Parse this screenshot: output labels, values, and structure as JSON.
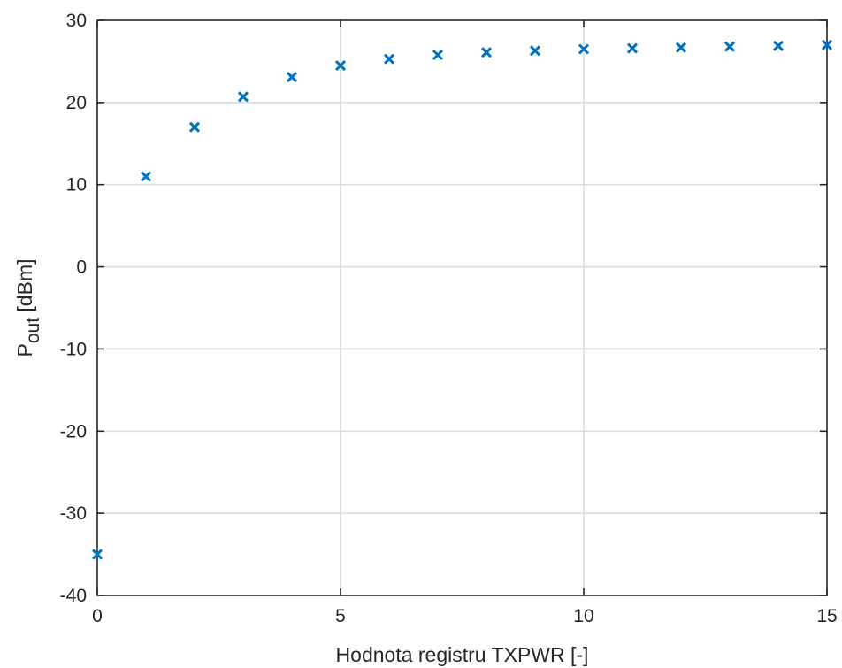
{
  "chart_data": {
    "type": "scatter",
    "marker": "x",
    "marker_color": "#0072bd",
    "xlabel": "Hodnota registru TXPWR [-]",
    "ylabel_main": "P",
    "ylabel_sub": "out",
    "ylabel_unit": " [dBm]",
    "xlim": [
      0,
      15
    ],
    "ylim": [
      -40,
      30
    ],
    "xticks": [
      0,
      5,
      10,
      15
    ],
    "yticks": [
      -40,
      -30,
      -20,
      -10,
      0,
      10,
      20,
      30
    ],
    "grid": true,
    "grid_color": "#dcdcdc",
    "axis_color": "#262626",
    "series": [
      {
        "x": [
          0,
          1,
          2,
          3,
          4,
          5,
          6,
          7,
          8,
          9,
          10,
          11,
          12,
          13,
          14,
          15
        ],
        "y": [
          -35,
          11,
          17,
          20.7,
          23.1,
          24.5,
          25.3,
          25.8,
          26.1,
          26.3,
          26.5,
          26.6,
          26.7,
          26.8,
          26.9,
          27
        ]
      }
    ]
  }
}
